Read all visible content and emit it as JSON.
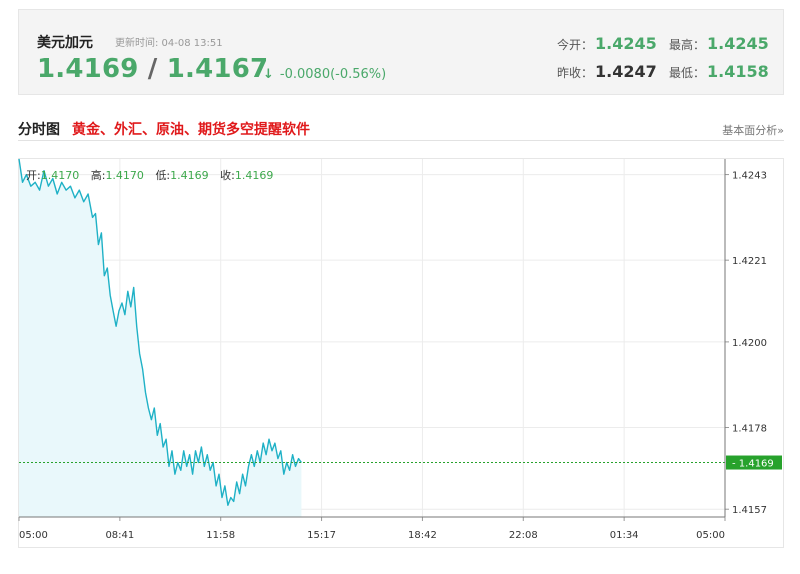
{
  "quote": {
    "name": "美元加元",
    "updated": "更新时间: 04-08 13:51",
    "bid": "1.4169",
    "separator": "/",
    "ask": "1.4167",
    "arrow": "↓",
    "change": "-0.0080(-0.56%)",
    "open_label": "今开：",
    "open": "1.4245",
    "high_label": "最高：",
    "high": "1.4245",
    "prev_close_label": "昨收：",
    "prev_close": "1.4247",
    "low_label": "最低：",
    "low": "1.4158"
  },
  "section": {
    "title": "分时图",
    "promo_link": "黄金、外汇、原油、期货多空提醒软件",
    "analysis_link": "基本面分析»"
  },
  "ohlc": {
    "open_label": "开:",
    "open": "1.4170",
    "high_label": "高:",
    "high": "1.4170",
    "low_label": "低:",
    "low": "1.4169",
    "close_label": "收:",
    "close": "1.4169"
  },
  "colors": {
    "price_up": "#4aa86a",
    "line": "#1fb1c6",
    "area": "#e9f8fb",
    "current_badge": "#27a22c",
    "promo_red": "#e0191b"
  },
  "chart_data": {
    "type": "line",
    "title": "",
    "xlabel": "",
    "ylabel": "",
    "x_ticks": [
      "05:00",
      "08:41",
      "11:58",
      "15:17",
      "18:42",
      "22:08",
      "01:34",
      "05:00"
    ],
    "y_ticks": [
      1.4243,
      1.4221,
      1.42,
      1.4178,
      1.4157
    ],
    "y_tick_labels": [
      "1.4243",
      "1.4221",
      "1.4200",
      "1.4178",
      "1.4157"
    ],
    "ylim": [
      1.4155,
      1.4247
    ],
    "current_value": 1.4169,
    "current_label": "1.4169",
    "grid": true,
    "fill_area": true,
    "series": [
      {
        "x_hours": [
          0.0,
          0.12,
          0.25,
          0.4,
          0.55,
          0.7,
          0.85,
          1.0,
          1.15,
          1.3,
          1.45,
          1.6,
          1.75,
          1.9,
          2.05,
          2.2,
          2.35,
          2.5,
          2.6,
          2.7,
          2.8,
          2.9,
          3.0,
          3.1,
          3.2,
          3.3,
          3.4,
          3.5,
          3.6,
          3.7,
          3.8,
          3.9,
          4.0,
          4.1,
          4.2,
          4.3,
          4.4,
          4.5,
          4.6,
          4.7,
          4.8,
          4.9,
          5.0,
          5.1,
          5.2,
          5.3,
          5.4,
          5.5,
          5.6,
          5.7,
          5.8,
          5.9,
          6.0,
          6.1,
          6.2,
          6.3,
          6.4,
          6.5,
          6.6,
          6.7,
          6.8,
          6.9,
          7.0,
          7.1,
          7.2,
          7.3,
          7.4,
          7.5,
          7.6,
          7.7,
          7.8,
          7.9,
          8.0,
          8.1,
          8.2,
          8.3,
          8.4,
          8.5,
          8.6,
          8.7,
          8.8,
          8.9,
          9.0,
          9.1,
          9.2,
          9.3,
          9.4,
          9.5,
          9.6
        ],
        "values": [
          1.4247,
          1.4241,
          1.4243,
          1.424,
          1.4241,
          1.4239,
          1.4244,
          1.424,
          1.4242,
          1.4238,
          1.4241,
          1.4239,
          1.424,
          1.4237,
          1.4239,
          1.4236,
          1.4238,
          1.4232,
          1.4233,
          1.4225,
          1.4228,
          1.4217,
          1.4219,
          1.4212,
          1.4208,
          1.4204,
          1.4208,
          1.421,
          1.4207,
          1.4213,
          1.4209,
          1.4214,
          1.4204,
          1.4197,
          1.4193,
          1.4187,
          1.4183,
          1.418,
          1.4183,
          1.4176,
          1.4179,
          1.4173,
          1.4175,
          1.4168,
          1.4172,
          1.4166,
          1.4169,
          1.4167,
          1.4172,
          1.4168,
          1.4171,
          1.4166,
          1.4172,
          1.4169,
          1.4173,
          1.4168,
          1.4171,
          1.4167,
          1.4169,
          1.4163,
          1.4166,
          1.416,
          1.4163,
          1.4158,
          1.416,
          1.4159,
          1.4164,
          1.4161,
          1.4166,
          1.4163,
          1.4168,
          1.4171,
          1.4168,
          1.4172,
          1.4169,
          1.4174,
          1.4171,
          1.4175,
          1.4172,
          1.4174,
          1.417,
          1.4172,
          1.4166,
          1.4169,
          1.4167,
          1.4171,
          1.4168,
          1.417,
          1.4169
        ]
      }
    ]
  }
}
